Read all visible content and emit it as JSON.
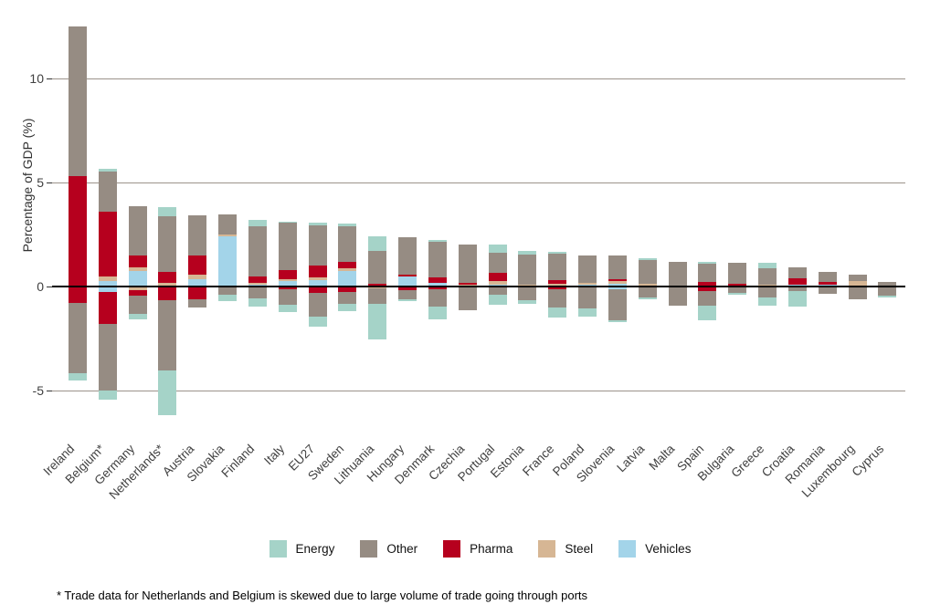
{
  "footnote": "* Trade data for Netherlands and Belgium is skewed due to large volume of trade going through ports",
  "colors": {
    "energy": "#a5d3c8",
    "other": "#968c83",
    "pharma": "#b6001e",
    "steel": "#d6b694",
    "vehicles": "#a3d4e9",
    "gridline": "#9c938b",
    "zero_line": "#000000",
    "axis_text": "#404040"
  },
  "chart_data": {
    "type": "bar",
    "stacked": true,
    "title": "",
    "ylabel": "Percentage of GDP (%)",
    "xlabel": "",
    "yticks": [
      10,
      5,
      0,
      -5
    ],
    "gridline_values": [
      10,
      5,
      -5
    ],
    "ylim": [
      -6.5,
      12.6
    ],
    "grid": "horizontal",
    "legend_position": "bottom",
    "stack_order_from_zero": [
      "Vehicles",
      "Steel",
      "Pharma",
      "Other",
      "Energy"
    ],
    "categories": [
      "Ireland",
      "Belgium*",
      "Germany",
      "Netherlands*",
      "Austria",
      "Slovakia",
      "Finland",
      "Italy",
      "EU27",
      "Sweden",
      "Lithuania",
      "Hungary",
      "Denmark",
      "Czechia",
      "Portugal",
      "Estonia",
      "France",
      "Poland",
      "Slovenia",
      "Latvia",
      "Malta",
      "Spain",
      "Bulgaria",
      "Greece",
      "Croatia",
      "Romania",
      "Luxembourg",
      "Cyprus"
    ],
    "series": [
      {
        "name": "Energy",
        "key": "energy",
        "pos": [
          0,
          0.13,
          0,
          0.44,
          0,
          0,
          0.34,
          0.07,
          0.12,
          0.15,
          0.69,
          0,
          0.1,
          0,
          0.36,
          0.19,
          0.09,
          0,
          0,
          0.08,
          0,
          0.12,
          0,
          0.27,
          0,
          0,
          0,
          0
        ],
        "neg": [
          -0.35,
          -0.44,
          -0.25,
          -2.14,
          0,
          -0.32,
          -0.39,
          -0.32,
          -0.46,
          -0.32,
          -1.68,
          -0.06,
          -0.62,
          0,
          -0.47,
          -0.15,
          -0.5,
          -0.36,
          -0.12,
          -0.1,
          0,
          -0.7,
          -0.11,
          -0.41,
          -0.74,
          0,
          0,
          -0.06
        ]
      },
      {
        "name": "Other",
        "key": "other",
        "pos": [
          7.2,
          1.92,
          2.34,
          2.7,
          1.93,
          0.97,
          2.41,
          2.27,
          1.93,
          1.71,
          1.58,
          1.8,
          1.72,
          1.84,
          1.0,
          1.42,
          1.29,
          1.3,
          1.13,
          1.14,
          1.2,
          0.87,
          1.0,
          0.79,
          0.54,
          0.48,
          0.33,
          0.21
        ],
        "neg": [
          -3.35,
          -3.22,
          -0.88,
          -3.37,
          -0.4,
          -0.38,
          -0.58,
          -0.77,
          -1.17,
          -0.59,
          -0.76,
          -0.47,
          -0.81,
          -1.12,
          -0.41,
          -0.67,
          -0.88,
          -1.07,
          -1.49,
          -0.53,
          -0.92,
          -0.7,
          -0.3,
          -0.51,
          -0.22,
          -0.36,
          -0.63,
          -0.45
        ]
      },
      {
        "name": "Pharma",
        "key": "pharma",
        "pos": [
          5.3,
          3.14,
          0.58,
          0.51,
          0.92,
          0,
          0.29,
          0.44,
          0.58,
          0.29,
          0.09,
          0.07,
          0.26,
          0.09,
          0.39,
          0,
          0.17,
          0,
          0.11,
          0,
          0,
          0.21,
          0.09,
          0,
          0.29,
          0.12,
          0,
          0
        ],
        "neg": [
          -0.8,
          -1.53,
          -0.27,
          -0.67,
          -0.6,
          0,
          0,
          -0.12,
          -0.29,
          -0.26,
          0,
          -0.16,
          -0.15,
          0,
          0,
          0,
          -0.12,
          0,
          0,
          0,
          0,
          -0.22,
          0,
          0,
          0,
          0,
          0,
          0
        ]
      },
      {
        "name": "Steel",
        "key": "steel",
        "pos": [
          0,
          0.22,
          0.16,
          0.14,
          0.22,
          0.09,
          0.09,
          0.09,
          0.15,
          0.15,
          0.04,
          0,
          0,
          0.06,
          0.15,
          0.1,
          0.06,
          0.12,
          0.12,
          0.09,
          0,
          0,
          0,
          0.07,
          0,
          0,
          0.25,
          0
        ],
        "neg": [
          0,
          0,
          -0.18,
          0,
          0,
          0,
          0,
          0,
          0,
          0,
          -0.09,
          0,
          0,
          0,
          0,
          0,
          0,
          0,
          0,
          0,
          0,
          0,
          0,
          0,
          0,
          0,
          0,
          0
        ]
      },
      {
        "name": "Vehicles",
        "key": "vehicles",
        "pos": [
          0,
          0.25,
          0.76,
          0.04,
          0.35,
          2.4,
          0.09,
          0.26,
          0.29,
          0.73,
          0,
          0.5,
          0.17,
          0.04,
          0.1,
          0,
          0.06,
          0.07,
          0.13,
          0.06,
          0,
          0,
          0.04,
          0,
          0.1,
          0.09,
          0,
          0
        ],
        "neg": [
          0,
          -0.26,
          0,
          0,
          0,
          0,
          0,
          0,
          0,
          0,
          0,
          0,
          0,
          0,
          0,
          0,
          0,
          0,
          -0.12,
          0,
          0,
          0,
          0,
          0,
          0,
          0,
          0,
          0
        ]
      }
    ]
  }
}
